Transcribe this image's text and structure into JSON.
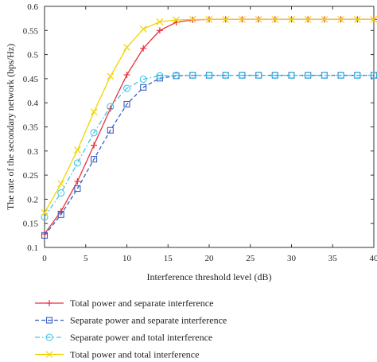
{
  "chart_data": {
    "type": "line",
    "title": "",
    "xlabel": "Interference threshold level (dB)",
    "ylabel": "The rate of the secondary network (bps/Hz)",
    "xlim": [
      0,
      40
    ],
    "ylim": [
      0.1,
      0.6
    ],
    "xticks": [
      0,
      5,
      10,
      15,
      20,
      25,
      30,
      35,
      40
    ],
    "yticks": [
      0.1,
      0.15,
      0.2,
      0.25,
      0.3,
      0.35,
      0.4,
      0.45,
      0.5,
      0.55,
      0.6
    ],
    "xtick_labels": [
      "0",
      "5",
      "10",
      "15",
      "20",
      "25",
      "30",
      "35",
      "40"
    ],
    "ytick_labels": [
      "0.1",
      "0.15",
      "0.2",
      "0.25",
      "0.3",
      "0.35",
      "0.4",
      "0.45",
      "0.5",
      "0.55",
      "0.6"
    ],
    "grid": false,
    "legend_position": "below",
    "x": [
      0,
      2,
      4,
      6,
      8,
      10,
      12,
      14,
      16,
      18,
      20,
      22,
      24,
      26,
      28,
      30,
      32,
      34,
      36,
      38,
      40
    ],
    "series": [
      {
        "name": "Total power and separate interference",
        "color": "#e8323c",
        "marker": "plus",
        "dash": "solid",
        "values": [
          0.128,
          0.175,
          0.237,
          0.312,
          0.388,
          0.458,
          0.513,
          0.55,
          0.567,
          0.572,
          0.573,
          0.573,
          0.573,
          0.573,
          0.573,
          0.573,
          0.573,
          0.573,
          0.573,
          0.573,
          0.573
        ]
      },
      {
        "name": "Separate power and separate interference",
        "color": "#3a5fc4",
        "marker": "square",
        "dash": "dashed",
        "values": [
          0.125,
          0.168,
          0.222,
          0.283,
          0.343,
          0.397,
          0.432,
          0.451,
          0.456,
          0.457,
          0.457,
          0.457,
          0.457,
          0.457,
          0.457,
          0.457,
          0.457,
          0.457,
          0.457,
          0.457,
          0.457
        ]
      },
      {
        "name": "Separate power and total interference",
        "color": "#3ec6e8",
        "marker": "circle",
        "dash": "dashdot",
        "values": [
          0.163,
          0.213,
          0.275,
          0.338,
          0.392,
          0.43,
          0.449,
          0.456,
          0.457,
          0.457,
          0.457,
          0.457,
          0.457,
          0.457,
          0.457,
          0.457,
          0.457,
          0.457,
          0.457,
          0.457,
          0.457
        ]
      },
      {
        "name": "Total power and total interference",
        "color": "#f0d400",
        "marker": "x",
        "dash": "solid",
        "values": [
          0.172,
          0.232,
          0.302,
          0.381,
          0.455,
          0.515,
          0.553,
          0.568,
          0.572,
          0.573,
          0.573,
          0.573,
          0.573,
          0.573,
          0.573,
          0.573,
          0.573,
          0.573,
          0.573,
          0.573,
          0.573
        ]
      }
    ]
  }
}
